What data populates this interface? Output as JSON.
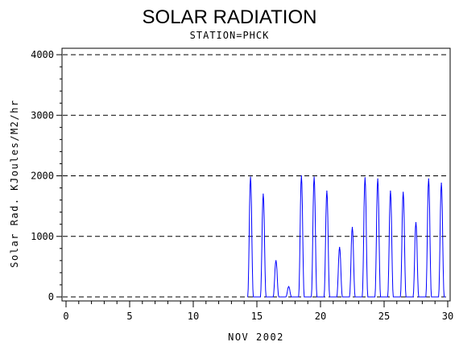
{
  "chart_data": {
    "type": "line",
    "title": "SOLAR RADIATION",
    "subtitle": "STATION=PHCK",
    "xlabel": "NOV 2002",
    "ylabel": "Solar Rad. KJoules/M2/hr",
    "xlim": [
      0,
      30
    ],
    "ylim": [
      0,
      4000
    ],
    "x_ticks": [
      0,
      5,
      10,
      15,
      20,
      25,
      30
    ],
    "y_ticks": [
      0,
      1000,
      2000,
      3000,
      4000
    ],
    "x_tick_labels": [
      "0",
      "5",
      "10",
      "15",
      "20",
      "25",
      "30"
    ],
    "y_tick_labels": [
      "0",
      "1000",
      "2000",
      "3000",
      "4000"
    ],
    "grid": "horizontal dashed",
    "series": [
      {
        "color": "#0000ff",
        "peaks": [
          {
            "day": 14.5,
            "value": 1980
          },
          {
            "day": 15.5,
            "value": 1700
          },
          {
            "day": 16.5,
            "value": 600
          },
          {
            "day": 17.5,
            "value": 170
          },
          {
            "day": 18.5,
            "value": 2000
          },
          {
            "day": 19.5,
            "value": 1980
          },
          {
            "day": 20.5,
            "value": 1750
          },
          {
            "day": 21.5,
            "value": 820
          },
          {
            "day": 22.5,
            "value": 1150
          },
          {
            "day": 23.5,
            "value": 1970
          },
          {
            "day": 24.5,
            "value": 1950
          },
          {
            "day": 25.5,
            "value": 1750
          },
          {
            "day": 26.5,
            "value": 1730
          },
          {
            "day": 27.5,
            "value": 1230
          },
          {
            "day": 28.5,
            "value": 1950
          },
          {
            "day": 29.5,
            "value": 1880
          }
        ]
      }
    ]
  }
}
